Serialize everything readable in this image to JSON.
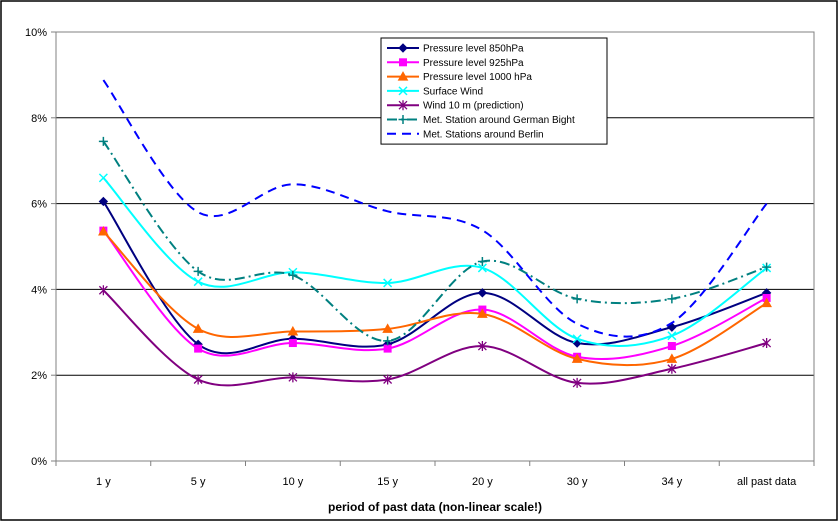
{
  "chart_data": {
    "type": "line",
    "title": "",
    "xlabel": "period of past data (non-linear scale!)",
    "ylabel": "",
    "ylim": [
      0,
      10
    ],
    "yticks": [
      "0%",
      "2%",
      "4%",
      "6%",
      "8%",
      "10%"
    ],
    "ytick_values": [
      0,
      2,
      4,
      6,
      8,
      10
    ],
    "categories": [
      "1 y",
      "5 y",
      "10 y",
      "15 y",
      "20 y",
      "30 y",
      "34 y",
      "all past data"
    ],
    "grid": "horizontal",
    "legend_position": "top-right",
    "series": [
      {
        "name": "Pressure level 850hPa",
        "color": "#000080",
        "marker": "diamond",
        "dash": "solid",
        "values": [
          6.05,
          2.72,
          2.85,
          2.72,
          3.92,
          2.75,
          3.12,
          3.92
        ]
      },
      {
        "name": "Pressure level 925hPa",
        "color": "#ff00ff",
        "marker": "square",
        "dash": "solid",
        "values": [
          5.37,
          2.62,
          2.75,
          2.62,
          3.53,
          2.43,
          2.68,
          3.8
        ]
      },
      {
        "name": "Pressure level 1000 hPa",
        "color": "#ff6600",
        "marker": "triangle",
        "dash": "solid",
        "values": [
          5.35,
          3.08,
          3.02,
          3.08,
          3.43,
          2.38,
          2.38,
          3.68
        ]
      },
      {
        "name": "Surface Wind",
        "color": "#00ffff",
        "marker": "x",
        "dash": "solid",
        "values": [
          6.6,
          4.18,
          4.4,
          4.15,
          4.5,
          2.85,
          2.92,
          4.5
        ]
      },
      {
        "name": "Wind 10 m (prediction)",
        "color": "#800080",
        "marker": "star",
        "dash": "solid",
        "values": [
          3.98,
          1.9,
          1.95,
          1.9,
          2.68,
          1.82,
          2.15,
          2.75
        ]
      },
      {
        "name": "Met. Station around German Bight",
        "color": "#008080",
        "marker": "plus",
        "dash": "dashdot",
        "values": [
          7.45,
          4.42,
          4.33,
          2.8,
          4.65,
          3.78,
          3.78,
          4.52
        ]
      },
      {
        "name": "Met. Stations around Berlin",
        "color": "#0000ff",
        "marker": "none",
        "dash": "dash",
        "values": [
          8.88,
          5.8,
          6.45,
          5.82,
          5.38,
          3.2,
          3.22,
          6.0
        ]
      }
    ]
  }
}
